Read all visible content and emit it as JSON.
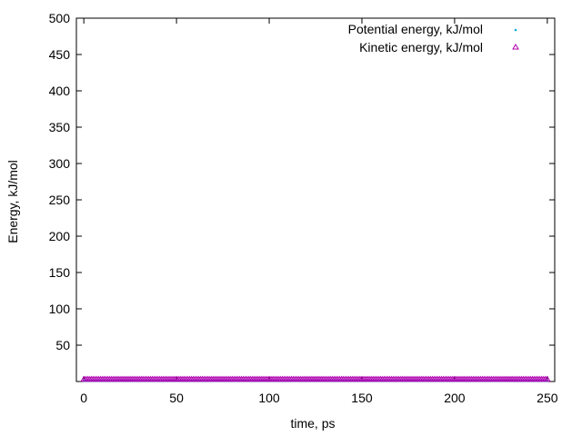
{
  "chart_data": {
    "type": "scatter",
    "title": "",
    "xlabel": "time, ps",
    "ylabel": "Energy, kJ/mol",
    "xlim": [
      -4,
      254
    ],
    "ylim": [
      0,
      500
    ],
    "x_ticks": [
      0,
      50,
      100,
      150,
      200,
      250
    ],
    "y_ticks": [
      50,
      100,
      150,
      200,
      250,
      300,
      350,
      400,
      450,
      500
    ],
    "grid": false,
    "legend_position": "top-right",
    "series": [
      {
        "name": "Potential energy, kJ/mol",
        "marker": "dot",
        "color": "#00b0d8",
        "x_start": 0,
        "x_end": 250,
        "x_step": 1,
        "y_constant": 1
      },
      {
        "name": "Kinetic energy, kJ/mol",
        "marker": "triangle-open",
        "color": "#b000b0",
        "x_start": 0,
        "x_end": 250,
        "x_step": 1,
        "y_constant": 3
      }
    ]
  }
}
